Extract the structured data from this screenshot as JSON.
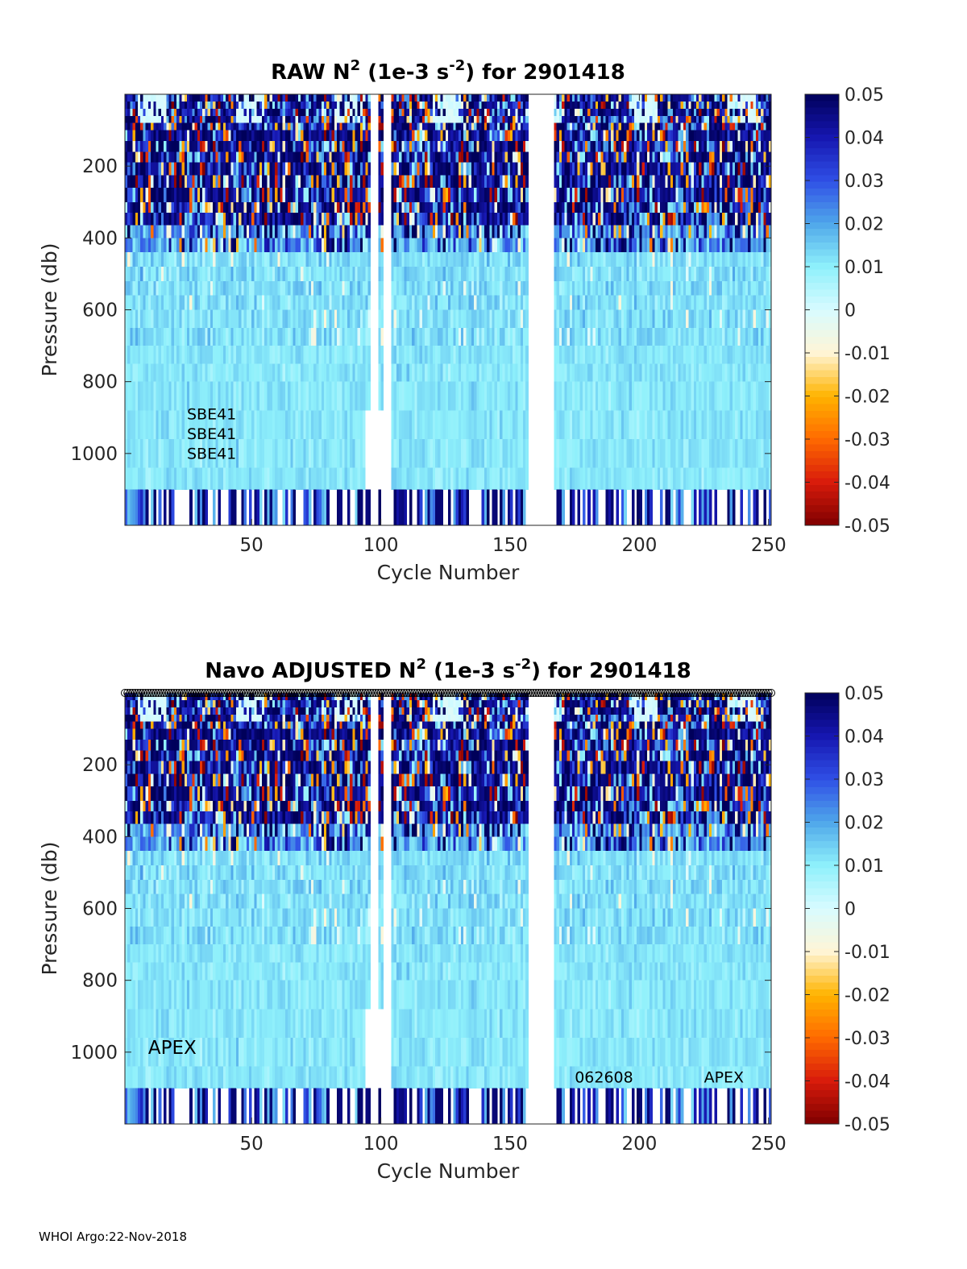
{
  "footer": "WHOI Argo:22-Nov-2018",
  "colormap": {
    "stops": [
      "#7f0000",
      "#d81b0b",
      "#ff6a00",
      "#ffb400",
      "#fff5d6",
      "#d8fbff",
      "#8ef0fb",
      "#4fa7ea",
      "#2f4fe6",
      "#1616b0",
      "#00005a"
    ],
    "nan_color": "#ffffff"
  },
  "chart_data": [
    {
      "type": "heatmap",
      "title_parts": [
        "RAW N",
        "2",
        " (1e-3 s",
        "-2",
        ") for 2901418"
      ],
      "xlabel": "Cycle Number",
      "ylabel": "Pressure (db)",
      "xlim": [
        1,
        251
      ],
      "ylim": [
        0,
        1200
      ],
      "y_reversed": true,
      "xticks": [
        50,
        100,
        150,
        200,
        250
      ],
      "yticks": [
        200,
        400,
        600,
        800,
        1000
      ],
      "colorbar": {
        "clim": [
          -0.05,
          0.05
        ],
        "ticks": [
          0.05,
          0.04,
          0.03,
          0.02,
          0.01,
          0,
          -0.01,
          -0.02,
          -0.03,
          -0.04,
          -0.05
        ],
        "tick_labels": [
          "0.05",
          "0.04",
          "0.03",
          "0.02",
          "0.01",
          "0",
          "-0.01",
          "-0.02",
          "-0.03",
          "-0.04",
          "-0.05"
        ]
      },
      "missing_cycles": [
        [
          96,
          98
        ],
        [
          101,
          103
        ],
        [
          157,
          166
        ]
      ],
      "annotations": [
        {
          "text": "SBE41",
          "x": 25,
          "y": 905
        },
        {
          "text": "SBE41",
          "x": 25,
          "y": 960
        },
        {
          "text": "SBE41",
          "x": 25,
          "y": 1015
        }
      ],
      "top_markers": false,
      "seed": 11
    },
    {
      "type": "heatmap",
      "title_parts": [
        "Navo  ADJUSTED N",
        "2",
        " (1e-3 s",
        "-2",
        ") for 2901418"
      ],
      "xlabel": "Cycle Number",
      "ylabel": "Pressure (db)",
      "xlim": [
        1,
        251
      ],
      "ylim": [
        0,
        1200
      ],
      "y_reversed": true,
      "xticks": [
        50,
        100,
        150,
        200,
        250
      ],
      "yticks": [
        200,
        400,
        600,
        800,
        1000
      ],
      "colorbar": {
        "clim": [
          -0.05,
          0.05
        ],
        "ticks": [
          0.05,
          0.04,
          0.03,
          0.02,
          0.01,
          0,
          -0.01,
          -0.02,
          -0.03,
          -0.04,
          -0.05
        ],
        "tick_labels": [
          "0.05",
          "0.04",
          "0.03",
          "0.02",
          "0.01",
          "0",
          "-0.01",
          "-0.02",
          "-0.03",
          "-0.04",
          "-0.05"
        ]
      },
      "missing_cycles": [
        [
          96,
          98
        ],
        [
          101,
          103
        ],
        [
          157,
          166
        ]
      ],
      "annotations": [
        {
          "text": "APEX",
          "x": 10,
          "y": 1005,
          "size": "large"
        },
        {
          "text": "062608",
          "x": 175,
          "y": 1085
        },
        {
          "text": "APEX",
          "x": 225,
          "y": 1085
        }
      ],
      "top_markers": true,
      "seed": 11
    }
  ]
}
